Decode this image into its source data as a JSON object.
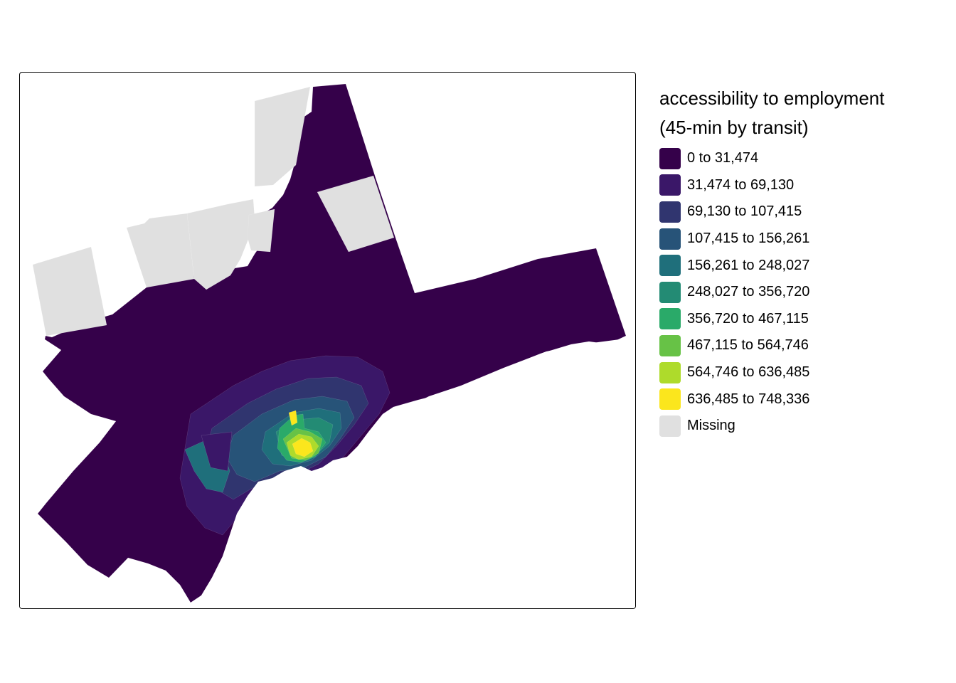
{
  "legend": {
    "title_line1": "accessibility to employment",
    "title_line2": "(45-min by transit)",
    "items": [
      {
        "label": "0 to 31,474",
        "color": "#35014a"
      },
      {
        "label": "31,474 to 69,130",
        "color": "#3a1768"
      },
      {
        "label": "69,130 to 107,415",
        "color": "#30356f"
      },
      {
        "label": "107,415 to 156,261",
        "color": "#275378"
      },
      {
        "label": "156,261 to 248,027",
        "color": "#1f6f7b"
      },
      {
        "label": "248,027 to 356,720",
        "color": "#238b74"
      },
      {
        "label": "356,720 to 467,115",
        "color": "#2aaa69"
      },
      {
        "label": "467,115 to 564,746",
        "color": "#67c246"
      },
      {
        "label": "564,746 to 636,485",
        "color": "#aedb2b"
      },
      {
        "label": "636,485 to 748,336",
        "color": "#fbe61d"
      },
      {
        "label": "Missing",
        "color": "#e0e0e0"
      }
    ]
  },
  "map": {
    "base_color": "#35014a",
    "missing_color": "#e0e0e0",
    "water_color": "#ffffff"
  }
}
